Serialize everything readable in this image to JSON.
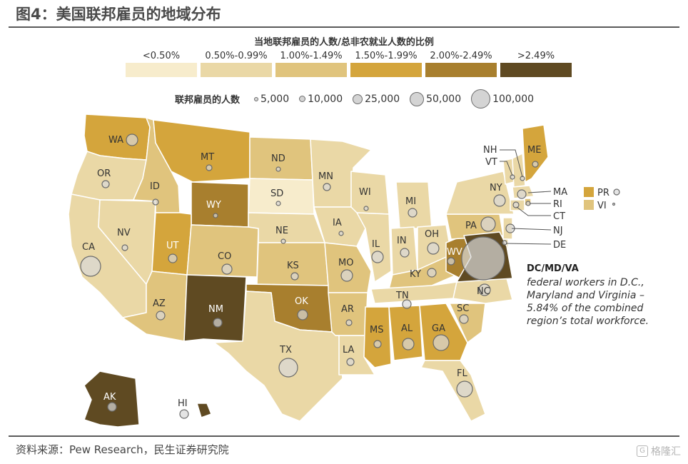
{
  "header": {
    "title": "图4：美国联邦雇员的地域分布"
  },
  "legend": {
    "title": "当地联邦雇员的人数/总非农就业人数的比例",
    "bins": [
      {
        "label": "<0.50%",
        "color": "#f7eccc"
      },
      {
        "label": "0.50%-0.99%",
        "color": "#ead8a6"
      },
      {
        "label": "1.00%-1.49%",
        "color": "#e0c47d"
      },
      {
        "label": "1.50%-1.99%",
        "color": "#d4a53c"
      },
      {
        "label": "2.00%-2.49%",
        "color": "#a87f2e"
      },
      {
        "label": ">2.49%",
        "color": "#5f4a22"
      }
    ],
    "size_title": "联邦雇员的人数",
    "sizes": [
      {
        "label": "5,000",
        "value": 5000
      },
      {
        "label": "10,000",
        "value": 10000
      },
      {
        "label": "25,000",
        "value": 25000
      },
      {
        "label": "50,000",
        "value": 50000
      },
      {
        "label": "100,000",
        "value": 100000
      }
    ]
  },
  "states": [
    {
      "abbr": "WA",
      "bin": 3
    },
    {
      "abbr": "OR",
      "bin": 1
    },
    {
      "abbr": "CA",
      "bin": 1
    },
    {
      "abbr": "NV",
      "bin": 1
    },
    {
      "abbr": "ID",
      "bin": 2
    },
    {
      "abbr": "MT",
      "bin": 3
    },
    {
      "abbr": "WY",
      "bin": 4
    },
    {
      "abbr": "UT",
      "bin": 3
    },
    {
      "abbr": "CO",
      "bin": 2
    },
    {
      "abbr": "AZ",
      "bin": 2
    },
    {
      "abbr": "NM",
      "bin": 5
    },
    {
      "abbr": "ND",
      "bin": 2
    },
    {
      "abbr": "SD",
      "bin": 0
    },
    {
      "abbr": "NE",
      "bin": 1
    },
    {
      "abbr": "KS",
      "bin": 2
    },
    {
      "abbr": "OK",
      "bin": 4
    },
    {
      "abbr": "TX",
      "bin": 1
    },
    {
      "abbr": "MN",
      "bin": 1
    },
    {
      "abbr": "IA",
      "bin": 1
    },
    {
      "abbr": "MO",
      "bin": 2
    },
    {
      "abbr": "AR",
      "bin": 2
    },
    {
      "abbr": "LA",
      "bin": 1
    },
    {
      "abbr": "WI",
      "bin": 1
    },
    {
      "abbr": "IL",
      "bin": 1
    },
    {
      "abbr": "MS",
      "bin": 3
    },
    {
      "abbr": "MI",
      "bin": 1
    },
    {
      "abbr": "IN",
      "bin": 1
    },
    {
      "abbr": "KY",
      "bin": 2
    },
    {
      "abbr": "TN",
      "bin": 1
    },
    {
      "abbr": "AL",
      "bin": 3
    },
    {
      "abbr": "GA",
      "bin": 3
    },
    {
      "abbr": "FL",
      "bin": 1
    },
    {
      "abbr": "OH",
      "bin": 1
    },
    {
      "abbr": "WV",
      "bin": 4
    },
    {
      "abbr": "NC",
      "bin": 1
    },
    {
      "abbr": "SC",
      "bin": 2
    },
    {
      "abbr": "PA",
      "bin": 2
    },
    {
      "abbr": "NY",
      "bin": 1
    },
    {
      "abbr": "VT",
      "bin": 1
    },
    {
      "abbr": "NH",
      "bin": 1
    },
    {
      "abbr": "ME",
      "bin": 3
    },
    {
      "abbr": "MA",
      "bin": 1
    },
    {
      "abbr": "RI",
      "bin": 2
    },
    {
      "abbr": "CT",
      "bin": 1
    },
    {
      "abbr": "NJ",
      "bin": 1
    },
    {
      "abbr": "DE",
      "bin": 1
    },
    {
      "abbr": "DC/MD/VA",
      "bin": 5
    },
    {
      "abbr": "AK",
      "bin": 5
    },
    {
      "abbr": "HI",
      "bin": 5
    },
    {
      "abbr": "PR",
      "bin": 3
    },
    {
      "abbr": "VI",
      "bin": 2
    }
  ],
  "annotation": {
    "label": "DC/MD/VA",
    "lines": [
      "federal workers in D.C.,",
      "Maryland and Virginia –",
      "5.84% of the combined",
      "region’s total workforce."
    ]
  },
  "source": "资料来源：Pew Research，民生证券研究院",
  "watermark": "格隆汇"
}
